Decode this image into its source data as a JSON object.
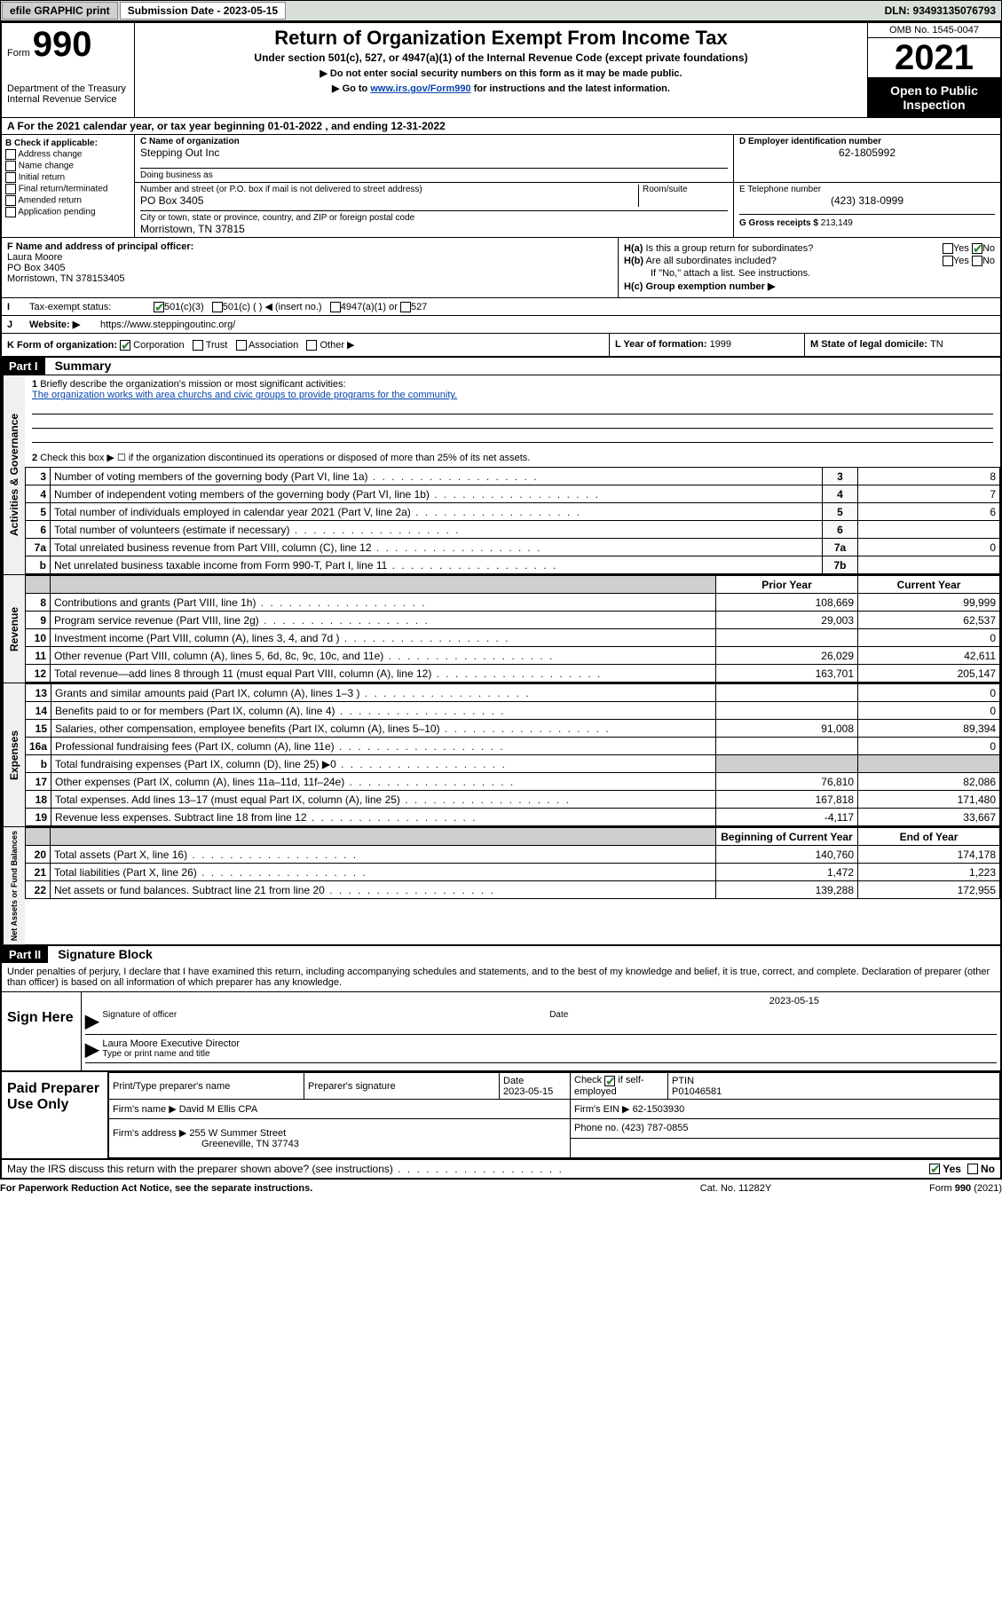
{
  "topbar": {
    "efile": "efile GRAPHIC print",
    "submission_label": "Submission Date - 2023-05-15",
    "dln": "DLN: 93493135076793"
  },
  "header": {
    "form_word": "Form",
    "form_number": "990",
    "title": "Return of Organization Exempt From Income Tax",
    "sub": "Under section 501(c), 527, or 4947(a)(1) of the Internal Revenue Code (except private foundations)",
    "note1": "▶ Do not enter social security numbers on this form as it may be made public.",
    "note2_pre": "▶ Go to ",
    "note2_link": "www.irs.gov/Form990",
    "note2_post": " for instructions and the latest information.",
    "dept": "Department of the Treasury\nInternal Revenue Service",
    "omb": "OMB No. 1545-0047",
    "year": "2021",
    "inspect": "Open to Public Inspection"
  },
  "rowA": {
    "prefix": "A For the 2021 calendar year, or tax year beginning ",
    "begin": "01-01-2022",
    "mid": " , and ending ",
    "end": "12-31-2022"
  },
  "secB": {
    "label": "B Check if applicable:",
    "opts": [
      "Address change",
      "Name change",
      "Initial return",
      "Final return/terminated",
      "Amended return",
      "Application pending"
    ]
  },
  "secC": {
    "name_label": "C Name of organization",
    "name": "Stepping Out Inc",
    "dba_label": "Doing business as",
    "dba": "",
    "street_label": "Number and street (or P.O. box if mail is not delivered to street address)",
    "room_label": "Room/suite",
    "street": "PO Box 3405",
    "city_label": "City or town, state or province, country, and ZIP or foreign postal code",
    "city": "Morristown, TN  37815"
  },
  "secD": {
    "label": "D Employer identification number",
    "val": "62-1805992"
  },
  "secE": {
    "label": "E Telephone number",
    "val": "(423) 318-0999"
  },
  "secG": {
    "label": "G Gross receipts $ ",
    "val": "213,149"
  },
  "secF": {
    "label": "F Name and address of principal officer:",
    "name": "Laura Moore",
    "addr1": "PO Box 3405",
    "addr2": "Morristown, TN  378153405"
  },
  "secH": {
    "ha_label": "H(a)  Is this a group return for subordinates?",
    "ha_yes": "Yes",
    "ha_no": "No",
    "hb_label": "H(b)  Are all subordinates included?",
    "hb_yes": "Yes",
    "hb_no": "No",
    "hb_note": "If \"No,\" attach a list. See instructions.",
    "hc_label": "H(c)  Group exemption number ▶"
  },
  "secI": {
    "label": "Tax-exempt status:",
    "o1": "501(c)(3)",
    "o2": "501(c) (  ) ◀ (insert no.)",
    "o3": "4947(a)(1) or",
    "o4": "527"
  },
  "secJ": {
    "label": "Website: ▶",
    "val": "https://www.steppingoutinc.org/"
  },
  "secK": {
    "label": "K Form of organization:",
    "o1": "Corporation",
    "o2": "Trust",
    "o3": "Association",
    "o4": "Other ▶"
  },
  "secL": {
    "label": "L Year of formation: ",
    "val": "1999"
  },
  "secM": {
    "label": "M State of legal domicile: ",
    "val": "TN"
  },
  "part1": {
    "hdr": "Part I",
    "title": "Summary",
    "vtab_gov": "Activities & Governance",
    "vtab_rev": "Revenue",
    "vtab_exp": "Expenses",
    "vtab_net": "Net Assets or Fund Balances",
    "l1_label": "Briefly describe the organization's mission or most significant activities:",
    "l1_text": "The organization works with area churchs and civic groups to provide programs for the community.",
    "l2_label": "Check this box ▶ ☐  if the organization discontinued its operations or disposed of more than 25% of its net assets.",
    "lines_gov": [
      {
        "n": "3",
        "desc": "Number of voting members of the governing body (Part VI, line 1a)",
        "box": "3",
        "val": "8"
      },
      {
        "n": "4",
        "desc": "Number of independent voting members of the governing body (Part VI, line 1b)",
        "box": "4",
        "val": "7"
      },
      {
        "n": "5",
        "desc": "Total number of individuals employed in calendar year 2021 (Part V, line 2a)",
        "box": "5",
        "val": "6"
      },
      {
        "n": "6",
        "desc": "Total number of volunteers (estimate if necessary)",
        "box": "6",
        "val": ""
      },
      {
        "n": "7a",
        "desc": "Total unrelated business revenue from Part VIII, column (C), line 12",
        "box": "7a",
        "val": "0"
      },
      {
        "n": "b",
        "desc": "Net unrelated business taxable income from Form 990-T, Part I, line 11",
        "box": "7b",
        "val": ""
      }
    ],
    "col_prior": "Prior Year",
    "col_current": "Current Year",
    "col_boy": "Beginning of Current Year",
    "col_eoy": "End of Year",
    "rev": [
      {
        "n": "8",
        "desc": "Contributions and grants (Part VIII, line 1h)",
        "p": "108,669",
        "c": "99,999"
      },
      {
        "n": "9",
        "desc": "Program service revenue (Part VIII, line 2g)",
        "p": "29,003",
        "c": "62,537"
      },
      {
        "n": "10",
        "desc": "Investment income (Part VIII, column (A), lines 3, 4, and 7d )",
        "p": "",
        "c": "0"
      },
      {
        "n": "11",
        "desc": "Other revenue (Part VIII, column (A), lines 5, 6d, 8c, 9c, 10c, and 11e)",
        "p": "26,029",
        "c": "42,611"
      },
      {
        "n": "12",
        "desc": "Total revenue—add lines 8 through 11 (must equal Part VIII, column (A), line 12)",
        "p": "163,701",
        "c": "205,147"
      }
    ],
    "exp": [
      {
        "n": "13",
        "desc": "Grants and similar amounts paid (Part IX, column (A), lines 1–3 )",
        "p": "",
        "c": "0"
      },
      {
        "n": "14",
        "desc": "Benefits paid to or for members (Part IX, column (A), line 4)",
        "p": "",
        "c": "0"
      },
      {
        "n": "15",
        "desc": "Salaries, other compensation, employee benefits (Part IX, column (A), lines 5–10)",
        "p": "91,008",
        "c": "89,394"
      },
      {
        "n": "16a",
        "desc": "Professional fundraising fees (Part IX, column (A), line 11e)",
        "p": "",
        "c": "0"
      },
      {
        "n": "b",
        "desc": "Total fundraising expenses (Part IX, column (D), line 25) ▶0",
        "p": "SHADE",
        "c": "SHADE"
      },
      {
        "n": "17",
        "desc": "Other expenses (Part IX, column (A), lines 11a–11d, 11f–24e)",
        "p": "76,810",
        "c": "82,086"
      },
      {
        "n": "18",
        "desc": "Total expenses. Add lines 13–17 (must equal Part IX, column (A), line 25)",
        "p": "167,818",
        "c": "171,480"
      },
      {
        "n": "19",
        "desc": "Revenue less expenses. Subtract line 18 from line 12",
        "p": "-4,117",
        "c": "33,667"
      }
    ],
    "net": [
      {
        "n": "20",
        "desc": "Total assets (Part X, line 16)",
        "p": "140,760",
        "c": "174,178"
      },
      {
        "n": "21",
        "desc": "Total liabilities (Part X, line 26)",
        "p": "1,472",
        "c": "1,223"
      },
      {
        "n": "22",
        "desc": "Net assets or fund balances. Subtract line 21 from line 20",
        "p": "139,288",
        "c": "172,955"
      }
    ]
  },
  "part2": {
    "hdr": "Part II",
    "title": "Signature Block",
    "decl": "Under penalties of perjury, I declare that I have examined this return, including accompanying schedules and statements, and to the best of my knowledge and belief, it is true, correct, and complete. Declaration of preparer (other than officer) is based on all information of which preparer has any knowledge.",
    "sign_here": "Sign Here",
    "sig_officer": "Signature of officer",
    "sig_date": "Date",
    "sig_date_val": "2023-05-15",
    "sig_name_label": "Type or print name and title",
    "sig_name": "Laura Moore  Executive Director",
    "paid_title": "Paid Preparer Use Only",
    "paid_hdr_name": "Print/Type preparer's name",
    "paid_hdr_sig": "Preparer's signature",
    "paid_hdr_date": "Date",
    "paid_date": "2023-05-15",
    "paid_check": "Check ☑ if self-employed",
    "paid_ptin_label": "PTIN",
    "paid_ptin": "P01046581",
    "firm_name_label": "Firm's name      ▶ ",
    "firm_name": "David M Ellis CPA",
    "firm_ein_label": "Firm's EIN ▶ ",
    "firm_ein": "62-1503930",
    "firm_addr_label": "Firm's address ▶ ",
    "firm_addr1": "255 W Summer Street",
    "firm_addr2": "Greeneville, TN  37743",
    "firm_phone_label": "Phone no. ",
    "firm_phone": "(423) 787-0855",
    "discuss": "May the IRS discuss this return with the preparer shown above? (see instructions)",
    "discuss_yes": "Yes",
    "discuss_no": "No"
  },
  "footer": {
    "left": "For Paperwork Reduction Act Notice, see the separate instructions.",
    "mid": "Cat. No. 11282Y",
    "right": "Form 990 (2021)"
  }
}
